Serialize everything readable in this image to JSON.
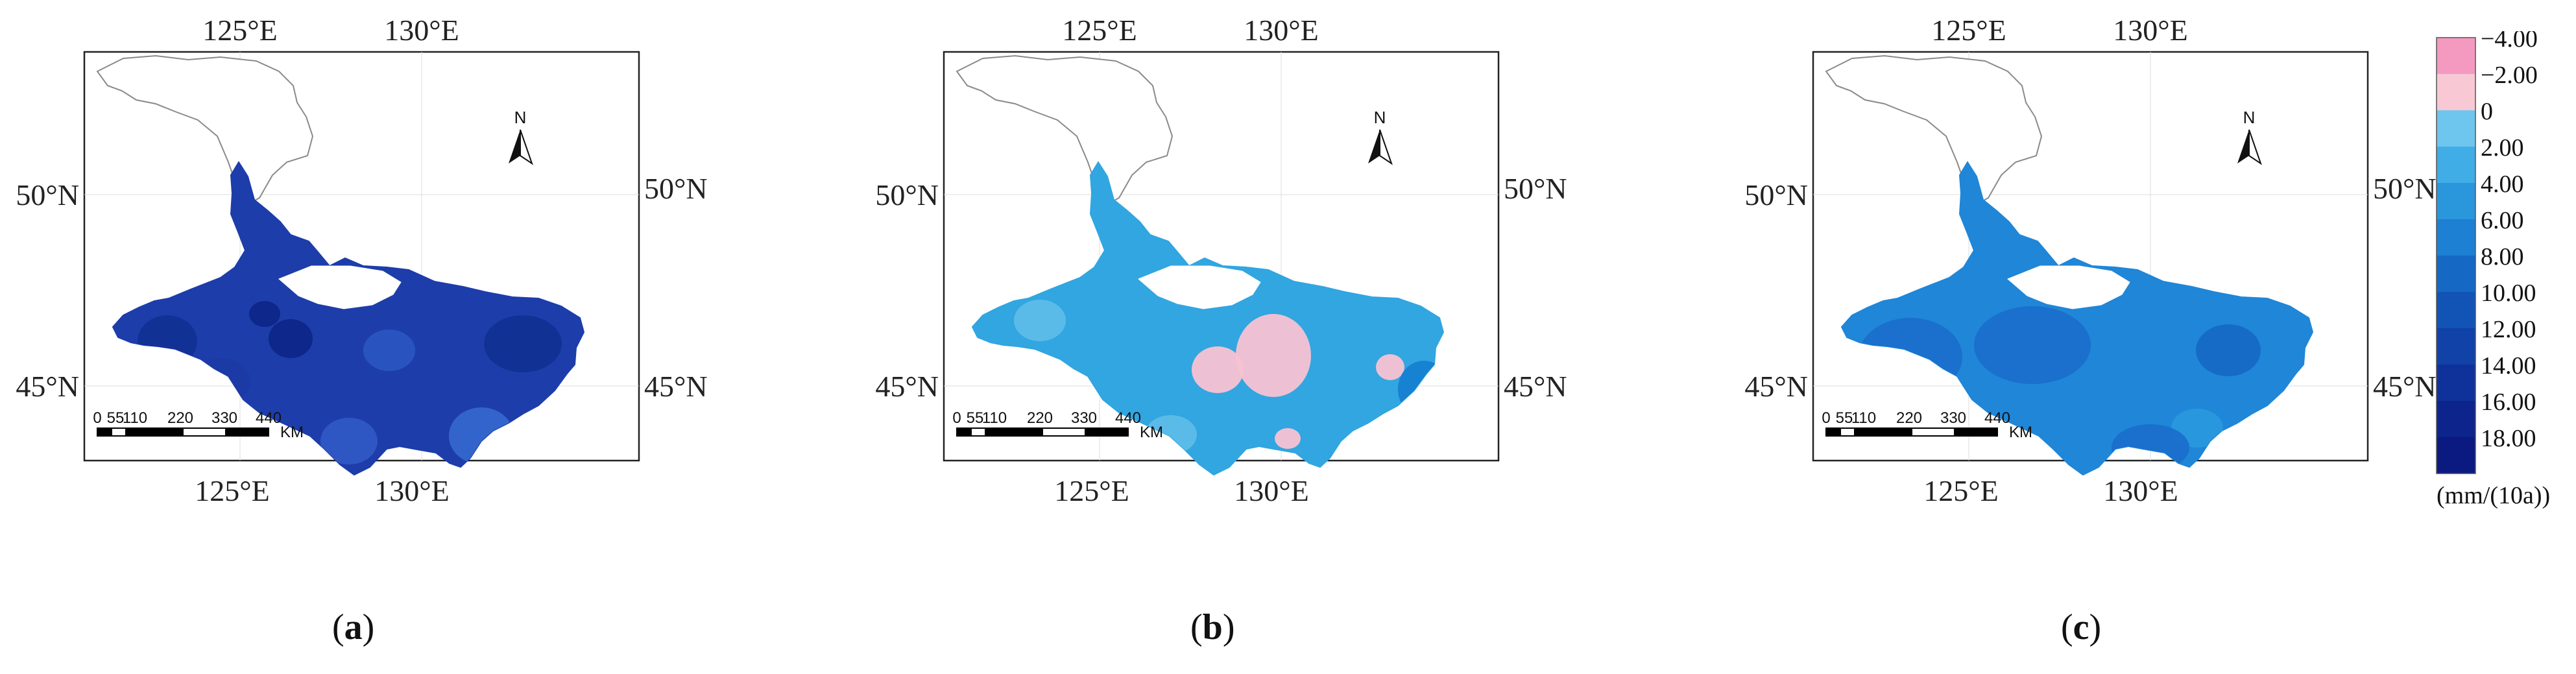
{
  "colors": {
    "land_outline": "#8a8a8a",
    "frame": "#222222",
    "grid": "#dddddd",
    "lake": "#ffffff"
  },
  "maps": [
    {
      "id": "a",
      "caption_letter": "a",
      "top_ticks": [
        "125°E",
        "130°E"
      ],
      "bottom_ticks": [
        "125°E",
        "130°E"
      ],
      "left_ticks": [
        "50°N",
        "45°N"
      ],
      "right_ticks": [
        "50°N",
        "45°N"
      ],
      "base_color": "#1d3dab",
      "blobs": [
        {
          "color": "#123094"
        },
        {
          "color": "#0d2688"
        },
        {
          "color": "#2f59c4"
        },
        {
          "color": "#123094"
        },
        {
          "color": "#2a55c0"
        },
        {
          "color": "#1b3aa5"
        },
        {
          "color": "#3566cc"
        },
        {
          "color": "#0d2688"
        }
      ]
    },
    {
      "id": "b",
      "caption_letter": "b",
      "top_ticks": [
        "125°E",
        "130°E"
      ],
      "bottom_ticks": [
        "125°E",
        "130°E"
      ],
      "left_ticks": [
        "50°N",
        "45°N"
      ],
      "right_ticks": [
        "50°N",
        "45°N"
      ],
      "base_color": "#31a6e0",
      "blobs": [
        {
          "color": "#f8c2d2"
        },
        {
          "color": "#f8c2d2"
        },
        {
          "color": "#f8c2d2"
        },
        {
          "color": "#f8c2d2"
        },
        {
          "color": "#f8c2d2"
        },
        {
          "color": "#5ebce8"
        },
        {
          "color": "#1580d0"
        },
        {
          "color": "#1f8ed8"
        },
        {
          "color": "#5ebce8"
        }
      ]
    },
    {
      "id": "c",
      "caption_letter": "c",
      "top_ticks": [
        "125°E",
        "130°E"
      ],
      "bottom_ticks": [
        "125°E",
        "130°E"
      ],
      "left_ticks": [
        "50°N",
        "45°N"
      ],
      "right_ticks": [
        "50°N",
        "45°N"
      ],
      "base_color": "#1f86d8",
      "blobs": [
        {
          "color": "#1a6fcb"
        },
        {
          "color": "#1a6fcb"
        },
        {
          "color": "#1669c5"
        },
        {
          "color": "#2a98de"
        },
        {
          "color": "#1a6fcb"
        }
      ]
    }
  ],
  "scale_bar": {
    "labels": [
      "0",
      "55",
      "110",
      "220",
      "330",
      "440"
    ],
    "unit": "KM"
  },
  "north_arrow": {
    "label": "N"
  },
  "legend": {
    "entries": [
      {
        "label": "−4.00",
        "color": "#f49ac1"
      },
      {
        "label": "−2.00",
        "color": "#f8c8d4"
      },
      {
        "label": "0",
        "color": "#6ec6ee"
      },
      {
        "label": "2.00",
        "color": "#40ade6"
      },
      {
        "label": "4.00",
        "color": "#2a96dc"
      },
      {
        "label": "6.00",
        "color": "#1d80d2"
      },
      {
        "label": "8.00",
        "color": "#1568c4"
      },
      {
        "label": "10.00",
        "color": "#1254b6"
      },
      {
        "label": "12.00",
        "color": "#1042a8"
      },
      {
        "label": "14.00",
        "color": "#0e329a"
      },
      {
        "label": "16.00",
        "color": "#0c248c"
      },
      {
        "label": "18.00",
        "color": "#0a1a80"
      }
    ],
    "unit": "(mm/(10a))"
  }
}
